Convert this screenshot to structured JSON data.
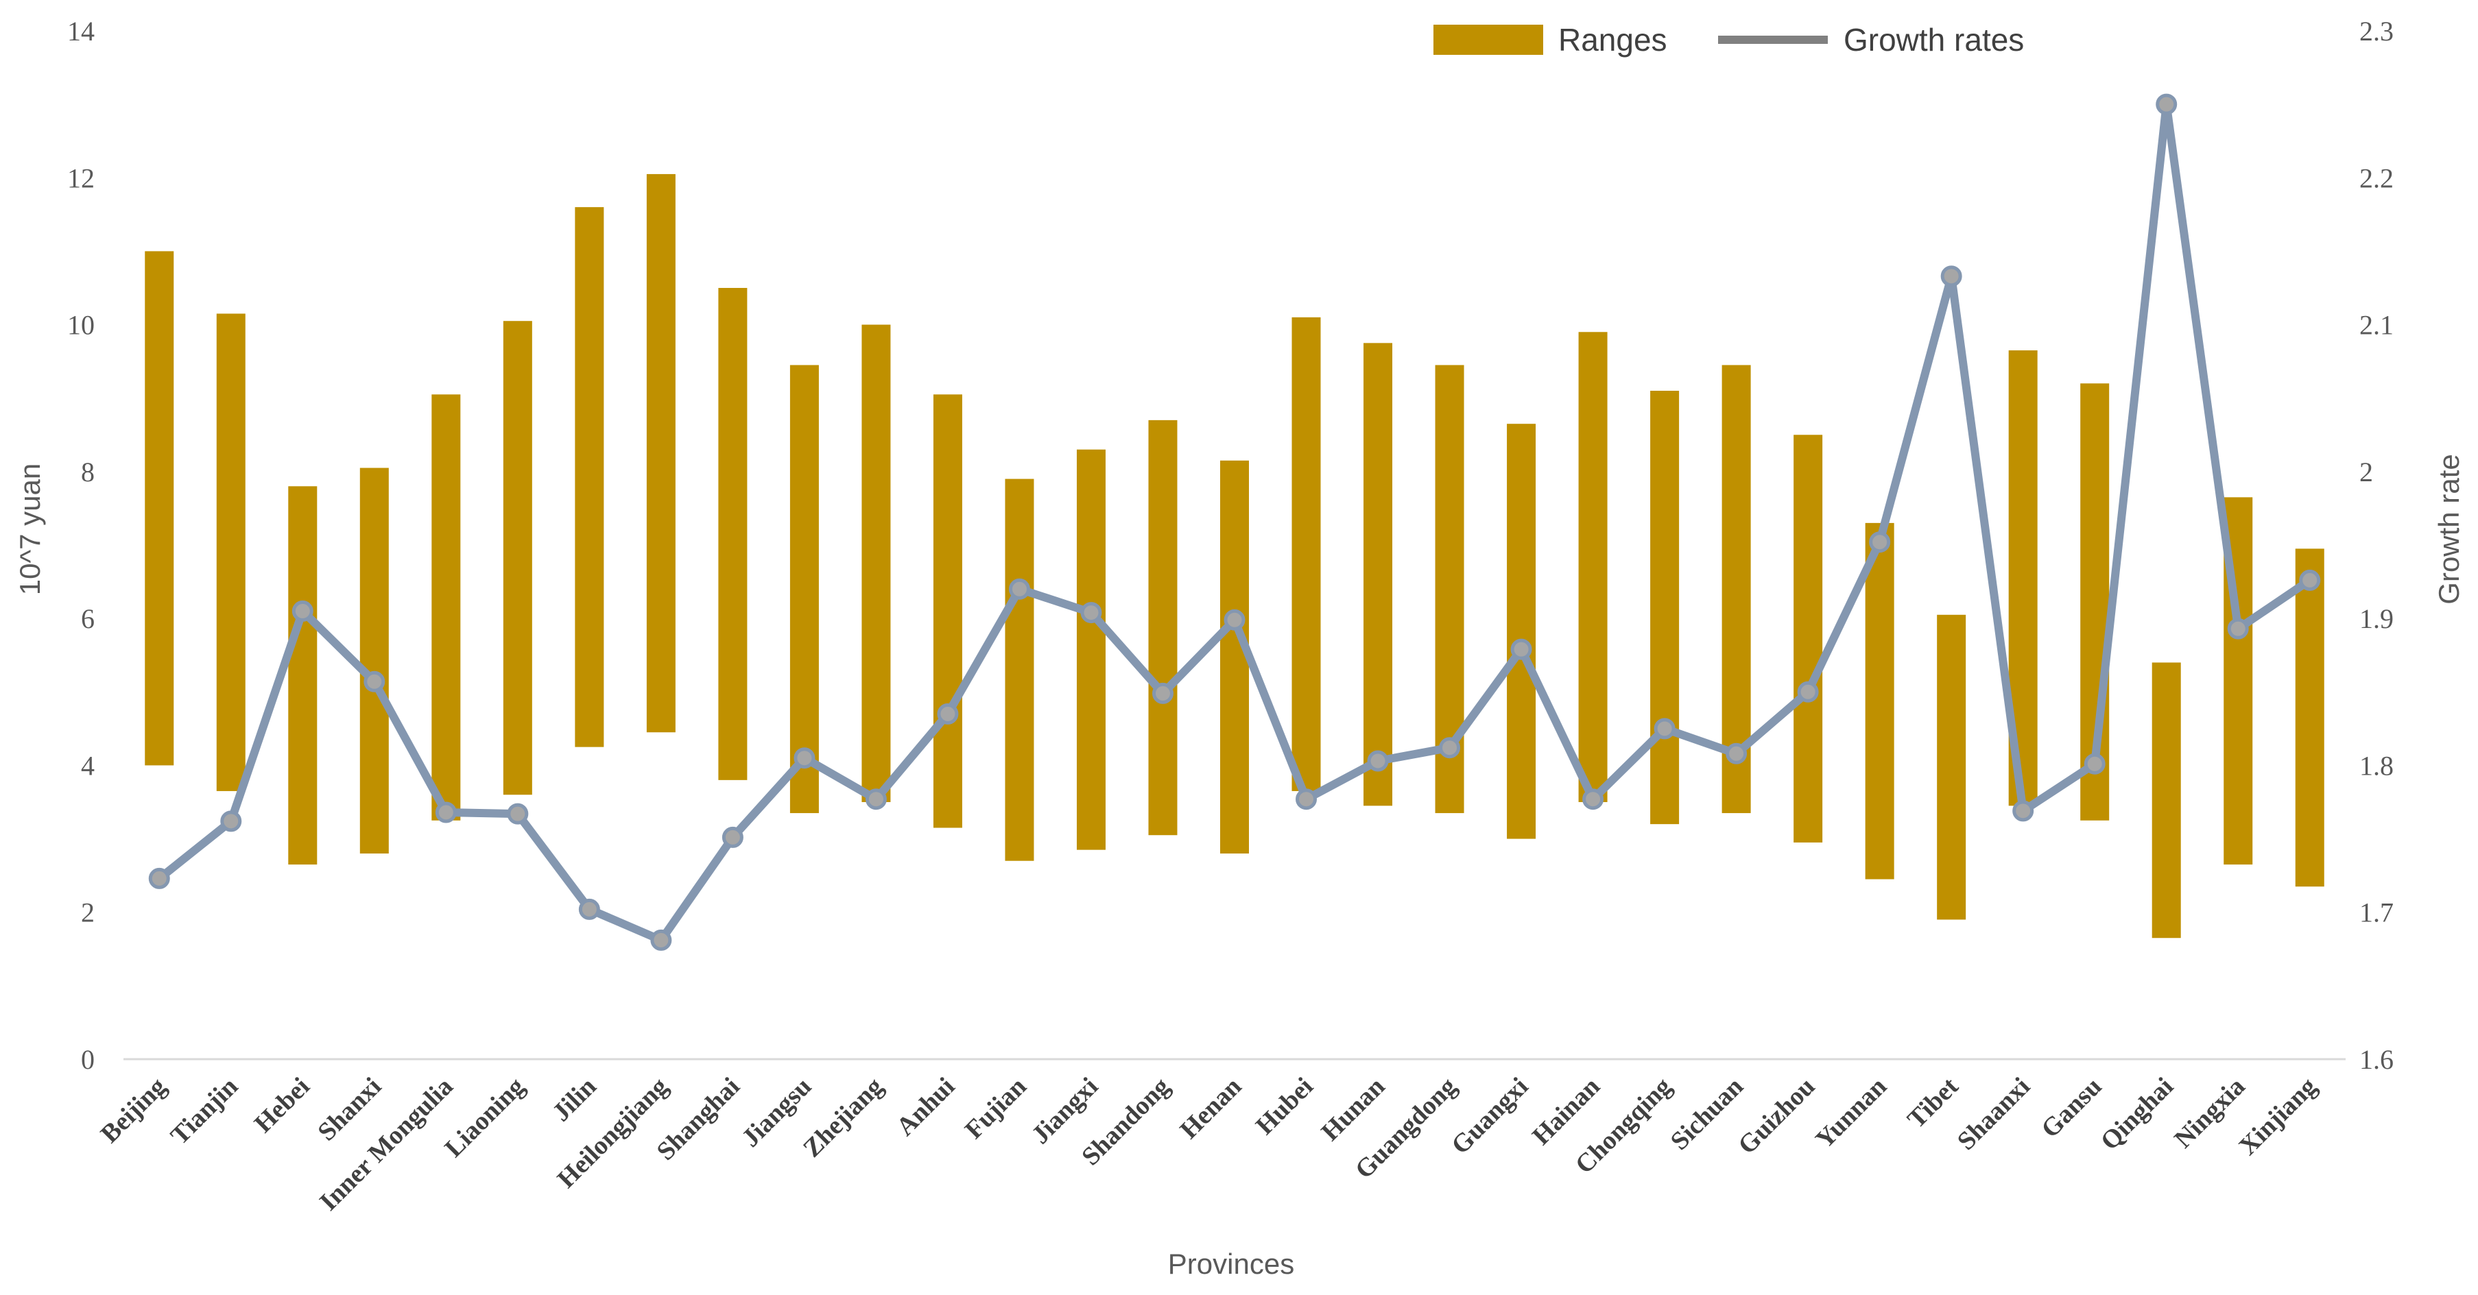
{
  "chart_data": {
    "type": "bar+line",
    "xlabel": "Provinces",
    "ylabel_left": "10^7 yuan",
    "ylabel_right": "Growth rate",
    "ylim_left": [
      0,
      14
    ],
    "ylim_right": [
      1.6,
      2.3
    ],
    "yticks_left": [
      "0",
      "2",
      "4",
      "6",
      "8",
      "10",
      "12",
      "14"
    ],
    "yticks_right": [
      "1.6",
      "1.7",
      "1.8",
      "1.9",
      "2",
      "2.1",
      "2.2",
      "2.3"
    ],
    "legend": {
      "position": "top-right",
      "ranges_label": "Ranges",
      "growth_label": "Growth rates"
    },
    "colors": {
      "bars": "#BF9000",
      "line": "#8497B0",
      "marker": "#A6A6A6",
      "axis": "#D9D9D9"
    },
    "categories": [
      "Beijing",
      "Tianjin",
      "Hebei",
      "Shanxi",
      "Inner Mongulia",
      "Liaoning",
      "Jilin",
      "Heilongjiang",
      "Shanghai",
      "Jiangsu",
      "Zhejiang",
      "Anhui",
      "Fujian",
      "Jiangxi",
      "Shandong",
      "Henan",
      "Hubei",
      "Hunan",
      "Guangdong",
      "Guangxi",
      "Hainan",
      "Chongqing",
      "Sichuan",
      "Guizhou",
      "Yunnan",
      "Tibet",
      "Shaanxi",
      "Gansu",
      "Qinghai",
      "Ningxia",
      "Xinjiang"
    ],
    "series": [
      {
        "name": "Ranges",
        "type": "floating-bar",
        "low": [
          4.0,
          3.65,
          2.65,
          2.8,
          3.25,
          3.6,
          4.25,
          4.45,
          3.8,
          3.35,
          3.5,
          3.15,
          2.7,
          2.85,
          3.05,
          2.8,
          3.65,
          3.45,
          3.35,
          3.0,
          3.5,
          3.2,
          3.35,
          2.95,
          2.45,
          1.9,
          3.45,
          3.25,
          1.65,
          2.65,
          2.35
        ],
        "high": [
          11.0,
          10.15,
          7.8,
          8.05,
          9.05,
          10.05,
          11.6,
          12.05,
          10.5,
          9.45,
          10.0,
          9.05,
          7.9,
          8.3,
          8.7,
          8.15,
          10.1,
          9.75,
          9.45,
          8.65,
          9.9,
          9.1,
          9.45,
          8.5,
          7.3,
          6.05,
          9.65,
          9.2,
          5.4,
          7.65,
          6.95
        ]
      },
      {
        "name": "Growth rates",
        "type": "line",
        "values": [
          1.723,
          1.762,
          1.905,
          1.857,
          1.768,
          1.767,
          1.702,
          1.681,
          1.751,
          1.805,
          1.777,
          1.835,
          1.92,
          1.904,
          1.849,
          1.899,
          1.777,
          1.803,
          1.812,
          1.879,
          1.777,
          1.825,
          1.808,
          1.85,
          1.952,
          2.133,
          1.769,
          1.801,
          2.25,
          1.893,
          1.926
        ]
      }
    ]
  }
}
